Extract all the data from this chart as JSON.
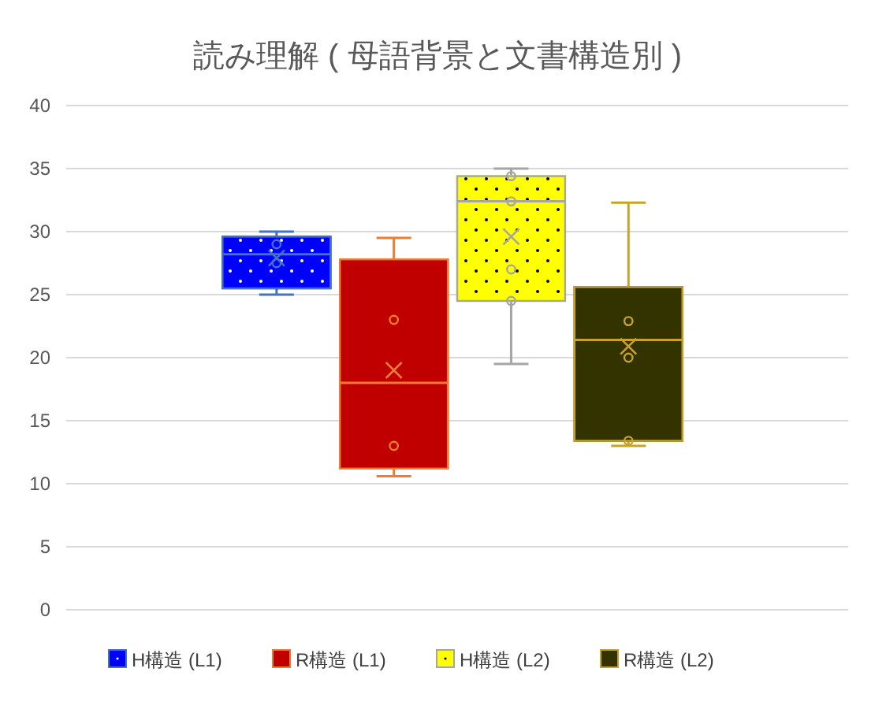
{
  "chart_data": {
    "type": "box",
    "title": "読み理解 ( 母語背景と文書構造別 )",
    "categories": [
      null
    ],
    "ylim": [
      0,
      40
    ],
    "yticks": [
      0,
      5,
      10,
      15,
      20,
      25,
      30,
      35,
      40
    ],
    "grid": "y",
    "legend": "bottom",
    "series": [
      {
        "name": "H構造 (L1)",
        "color": "#0000ff",
        "boxes": [
          {
            "low": 25,
            "q1": 25.5,
            "median": 28.2,
            "q3": 29.6,
            "high": 30,
            "mean": 27.9,
            "outliers": [
              29,
              27.5
            ]
          }
        ]
      },
      {
        "name": "R構造 (L1)",
        "color": "#c00000",
        "boxes": [
          {
            "low": 10.6,
            "q1": 11.2,
            "median": 18,
            "q3": 27.8,
            "high": 29.5,
            "mean": 19,
            "outliers": [
              23,
              13
            ]
          }
        ]
      },
      {
        "name": "H構造 (L2)",
        "color": "#ffff00",
        "boxes": [
          {
            "low": 19.5,
            "q1": 24.5,
            "median": 32.4,
            "q3": 34.4,
            "high": 35,
            "mean": 29.6,
            "outliers": [
              34.4,
              32.4,
              27,
              24.5
            ]
          }
        ]
      },
      {
        "name": "R構造 (L2)",
        "color": "#333300",
        "boxes": [
          {
            "low": 13,
            "q1": 13.4,
            "median": 21.4,
            "q3": 25.6,
            "high": 32.3,
            "mean": 20.9,
            "outliers": [
              22.9,
              20,
              13.4
            ]
          }
        ]
      }
    ]
  }
}
